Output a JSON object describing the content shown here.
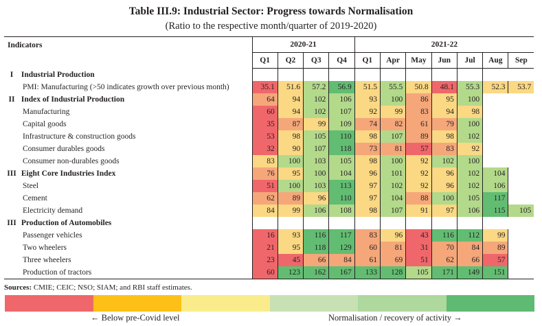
{
  "title": "Table III.9: Industrial Sector: Progress towards Normalisation",
  "subtitle": "(Ratio to the respective month/quarter of 2019-2020)",
  "header": {
    "indicators": "Indicators",
    "years": [
      {
        "label": "2020-21",
        "span": 4
      },
      {
        "label": "2021-22",
        "span": 7
      }
    ],
    "columns": [
      "Q1",
      "Q2",
      "Q3",
      "Q4",
      "Q1",
      "Apr",
      "May",
      "Jun",
      "Jul",
      "Aug",
      "Sep"
    ]
  },
  "color_scale": {
    "r": "#f0676b",
    "o": "#f5a77a",
    "y": "#fbd883",
    "l": "#b3d98b",
    "g": "#62bd72"
  },
  "rows": [
    {
      "roman": "I",
      "label": "Industrial Production",
      "section": true,
      "values": [],
      "colors": []
    },
    {
      "label": "PMI: Manufacturing (>50 indicates growth over previous month)",
      "values": [
        "35.1",
        "51.6",
        "57.2",
        "56.9",
        "51.5",
        "55.5",
        "50.8",
        "48.1",
        "55.3",
        "52.3",
        "53.7"
      ],
      "colors": [
        "r",
        "y",
        "l",
        "g",
        "y",
        "l",
        "y",
        "r",
        "l",
        "y",
        "y"
      ]
    },
    {
      "roman": "II",
      "label": "Index of Industrial Production",
      "section": true,
      "values": [
        "64",
        "94",
        "102",
        "106",
        "93",
        "100",
        "86",
        "95",
        "100"
      ],
      "colors": [
        "o",
        "y",
        "l",
        "l",
        "y",
        "l",
        "o",
        "y",
        "l"
      ]
    },
    {
      "label": "Manufacturing",
      "values": [
        "60",
        "94",
        "102",
        "107",
        "92",
        "99",
        "83",
        "94",
        "98"
      ],
      "colors": [
        "r",
        "y",
        "l",
        "l",
        "y",
        "y",
        "o",
        "y",
        "y"
      ]
    },
    {
      "label": "Capital goods",
      "values": [
        "35",
        "87",
        "99",
        "109",
        "74",
        "82",
        "61",
        "79",
        "100"
      ],
      "colors": [
        "r",
        "o",
        "y",
        "l",
        "o",
        "o",
        "o",
        "o",
        "l"
      ]
    },
    {
      "label": "Infrastructure & construction goods",
      "values": [
        "53",
        "98",
        "105",
        "110",
        "98",
        "107",
        "89",
        "98",
        "102"
      ],
      "colors": [
        "r",
        "y",
        "l",
        "g",
        "y",
        "l",
        "o",
        "y",
        "l"
      ]
    },
    {
      "label": "Consumer durables goods",
      "values": [
        "32",
        "90",
        "107",
        "118",
        "73",
        "81",
        "57",
        "83",
        "92"
      ],
      "colors": [
        "r",
        "y",
        "l",
        "g",
        "o",
        "o",
        "r",
        "o",
        "y"
      ]
    },
    {
      "label": "Consumer non-durables goods",
      "values": [
        "83",
        "100",
        "103",
        "105",
        "98",
        "100",
        "92",
        "102",
        "100"
      ],
      "colors": [
        "y",
        "l",
        "l",
        "l",
        "y",
        "l",
        "y",
        "l",
        "l"
      ]
    },
    {
      "roman": "III",
      "label": "Eight Core Industries Index",
      "section": true,
      "values": [
        "76",
        "95",
        "100",
        "104",
        "96",
        "101",
        "92",
        "96",
        "102",
        "104"
      ],
      "colors": [
        "o",
        "y",
        "l",
        "l",
        "y",
        "l",
        "y",
        "y",
        "l",
        "l"
      ]
    },
    {
      "label": "Steel",
      "values": [
        "51",
        "100",
        "103",
        "113",
        "97",
        "102",
        "92",
        "96",
        "102",
        "106"
      ],
      "colors": [
        "r",
        "l",
        "l",
        "g",
        "y",
        "l",
        "y",
        "y",
        "l",
        "l"
      ]
    },
    {
      "label": "Cement",
      "values": [
        "62",
        "89",
        "96",
        "110",
        "97",
        "104",
        "88",
        "100",
        "105",
        "117"
      ],
      "colors": [
        "o",
        "o",
        "y",
        "g",
        "y",
        "l",
        "o",
        "l",
        "l",
        "g"
      ]
    },
    {
      "label": "Electricity demand",
      "values": [
        "84",
        "99",
        "106",
        "108",
        "98",
        "107",
        "91",
        "97",
        "106",
        "115",
        "105"
      ],
      "colors": [
        "y",
        "y",
        "l",
        "l",
        "y",
        "l",
        "y",
        "y",
        "l",
        "g",
        "l"
      ]
    },
    {
      "roman": "III",
      "label": "Production of Automobiles",
      "section": true,
      "values": [],
      "colors": []
    },
    {
      "label": "Passenger vehicles",
      "values": [
        "16",
        "93",
        "116",
        "117",
        "83",
        "96",
        "43",
        "116",
        "112",
        "99"
      ],
      "colors": [
        "r",
        "y",
        "g",
        "g",
        "o",
        "y",
        "r",
        "g",
        "g",
        "y"
      ]
    },
    {
      "label": "Two wheelers",
      "values": [
        "21",
        "95",
        "118",
        "129",
        "60",
        "81",
        "31",
        "70",
        "84",
        "89"
      ],
      "colors": [
        "r",
        "y",
        "g",
        "g",
        "o",
        "o",
        "r",
        "o",
        "o",
        "o"
      ]
    },
    {
      "label": "Three wheelers",
      "values": [
        "23",
        "45",
        "66",
        "84",
        "61",
        "69",
        "51",
        "62",
        "66",
        "57"
      ],
      "colors": [
        "r",
        "r",
        "o",
        "o",
        "o",
        "o",
        "r",
        "o",
        "o",
        "r"
      ]
    },
    {
      "label": "Production of tractors",
      "values": [
        "60",
        "123",
        "162",
        "167",
        "133",
        "128",
        "105",
        "171",
        "149",
        "151"
      ],
      "colors": [
        "r",
        "g",
        "g",
        "g",
        "g",
        "g",
        "l",
        "g",
        "g",
        "g"
      ]
    }
  ],
  "sources": {
    "label": "Sources:",
    "text": " CMIE; CEIC; NSO; SIAM; and RBI staff estimates."
  },
  "legend": {
    "colors": [
      "#f0676b",
      "#fcc016",
      "#faec8a",
      "#c7e0b4",
      "#aed89e",
      "#5fba74"
    ],
    "left_label": "← Below pre-Covid level",
    "right_label": "Normalisation / recovery of activity →"
  }
}
